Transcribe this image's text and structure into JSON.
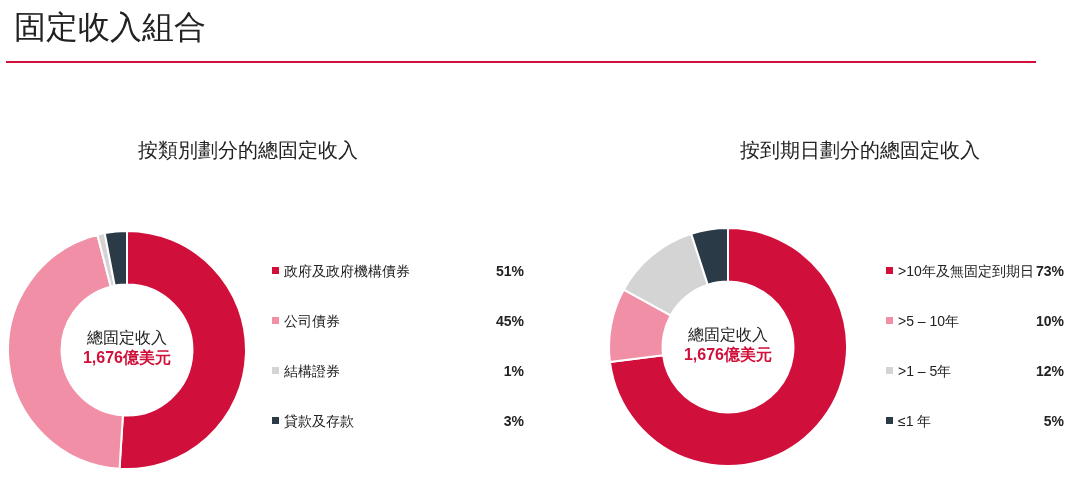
{
  "chart_data": [
    {
      "type": "other",
      "title": "固定收入組合",
      "color": "#d0103a"
    },
    {
      "type": "donut",
      "title": "按類別劃分的總固定收入",
      "categories": [
        "政府及政府機構債券",
        "公司債券",
        "結構證券",
        "貸款及存款"
      ],
      "values": [
        51,
        45,
        1,
        3
      ],
      "colors": [
        "#d0103a",
        "#f08fa5",
        "#d4d4d4",
        "#2b3a47"
      ],
      "value_labels": [
        "51%",
        "45%",
        "1%",
        "3%"
      ],
      "legend": "right",
      "annotations": [
        "總固定收入",
        "1,676億美元"
      ]
    },
    {
      "type": "donut",
      "title": "按到期日劃分的總固定收入",
      "categories": [
        ">10年及無固定到期日",
        ">5 – 10年",
        ">1 – 5年",
        "≤1 年"
      ],
      "values": [
        73,
        10,
        12,
        5
      ],
      "colors": [
        "#d0103a",
        "#f08fa5",
        "#d4d4d4",
        "#2b3a47"
      ],
      "value_labels": [
        "73%",
        "10%",
        "12%",
        "5%"
      ],
      "legend": "right",
      "annotations": [
        "總固定收入",
        "1,676億美元"
      ]
    }
  ]
}
